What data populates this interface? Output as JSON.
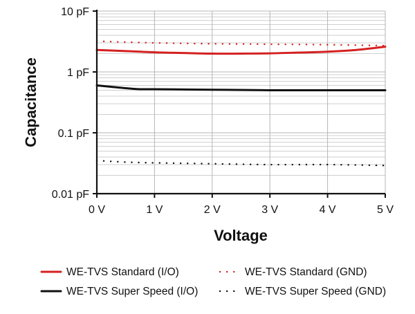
{
  "chart_data": {
    "type": "line",
    "title": "",
    "xlabel": "Voltage",
    "ylabel": "Capacitance",
    "x_scale": "linear",
    "y_scale": "log",
    "xlim": [
      0,
      5
    ],
    "ylim": [
      0.01,
      10
    ],
    "x_ticks": [
      {
        "value": 0,
        "label": "0 V"
      },
      {
        "value": 1,
        "label": "1 V"
      },
      {
        "value": 2,
        "label": "2 V"
      },
      {
        "value": 3,
        "label": "3 V"
      },
      {
        "value": 4,
        "label": "4 V"
      },
      {
        "value": 5,
        "label": "5 V"
      }
    ],
    "y_ticks": [
      {
        "value": 0.01,
        "label": "0.01 pF"
      },
      {
        "value": 0.1,
        "label": "0.1 pF"
      },
      {
        "value": 1,
        "label": "1 pF"
      },
      {
        "value": 10,
        "label": "10 pF"
      }
    ],
    "grid": true,
    "legend_position": "bottom",
    "series": [
      {
        "name": "WE-TVS Standard (I/O)",
        "color": "#d42020",
        "style": "solid",
        "x": [
          0,
          0.5,
          1,
          1.5,
          2,
          2.5,
          3,
          3.5,
          4,
          4.5,
          5
        ],
        "y": [
          2.3,
          2.2,
          2.1,
          2.05,
          2.0,
          2.0,
          2.02,
          2.08,
          2.15,
          2.3,
          2.6
        ]
      },
      {
        "name": "WE-TVS Super Speed (I/O)",
        "color": "#111111",
        "style": "solid",
        "x": [
          0,
          0.25,
          0.5,
          0.75,
          1,
          2,
          3,
          4,
          5
        ],
        "y": [
          0.6,
          0.57,
          0.54,
          0.52,
          0.52,
          0.51,
          0.5,
          0.5,
          0.5
        ]
      },
      {
        "name": "WE-TVS Standard (GND)",
        "color": "#d42020",
        "style": "dotted",
        "x": [
          0,
          1,
          2,
          3,
          4,
          5
        ],
        "y": [
          3.2,
          3.0,
          2.9,
          2.85,
          2.8,
          2.7
        ]
      },
      {
        "name": "WE-TVS Super Speed (GND)",
        "color": "#111111",
        "style": "dotted",
        "x": [
          0,
          0.5,
          1,
          2,
          3,
          4,
          5
        ],
        "y": [
          0.035,
          0.033,
          0.032,
          0.031,
          0.03,
          0.03,
          0.029
        ]
      }
    ]
  }
}
